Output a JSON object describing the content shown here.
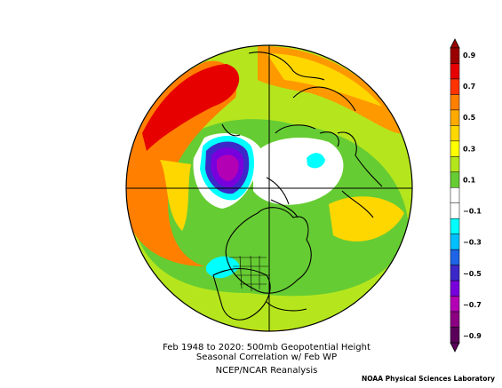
{
  "title": {
    "line1": "Feb 1948 to 2020: 500mb Geopotential Height",
    "line2": "Seasonal Correlation w/ Feb WP",
    "line3": "NCEP/NCAR Reanalysis"
  },
  "credit": "NOAA Physical Sciences Laboratory",
  "colorbar": {
    "labels": [
      "0.9",
      "0.7",
      "0.5",
      "0.3",
      "0.1",
      "−0.1",
      "−0.3",
      "−0.5",
      "−0.7",
      "−0.9"
    ],
    "colors": [
      "#9a0000",
      "#e60000",
      "#ff3300",
      "#ff7f00",
      "#ffaa00",
      "#ffd700",
      "#ffff00",
      "#b5e61d",
      "#66cc33",
      "#ffffff",
      "#ffffff",
      "#00ffff",
      "#00bfff",
      "#1e64e6",
      "#3c28c8",
      "#7800dc",
      "#b400b4",
      "#8c0082",
      "#5a005a"
    ]
  },
  "map": {
    "projection": "north-polar-stereographic",
    "variable": "500mb geopotential height correlation",
    "colors": {
      "ocean_base": "#66cc33",
      "strong_positive": "#e60000",
      "positive": "#ff7f00",
      "weak_positive": "#ffd700",
      "neutral": "#ffffff",
      "weak_negative": "#00ffff",
      "strong_negative": "#7800dc"
    }
  }
}
